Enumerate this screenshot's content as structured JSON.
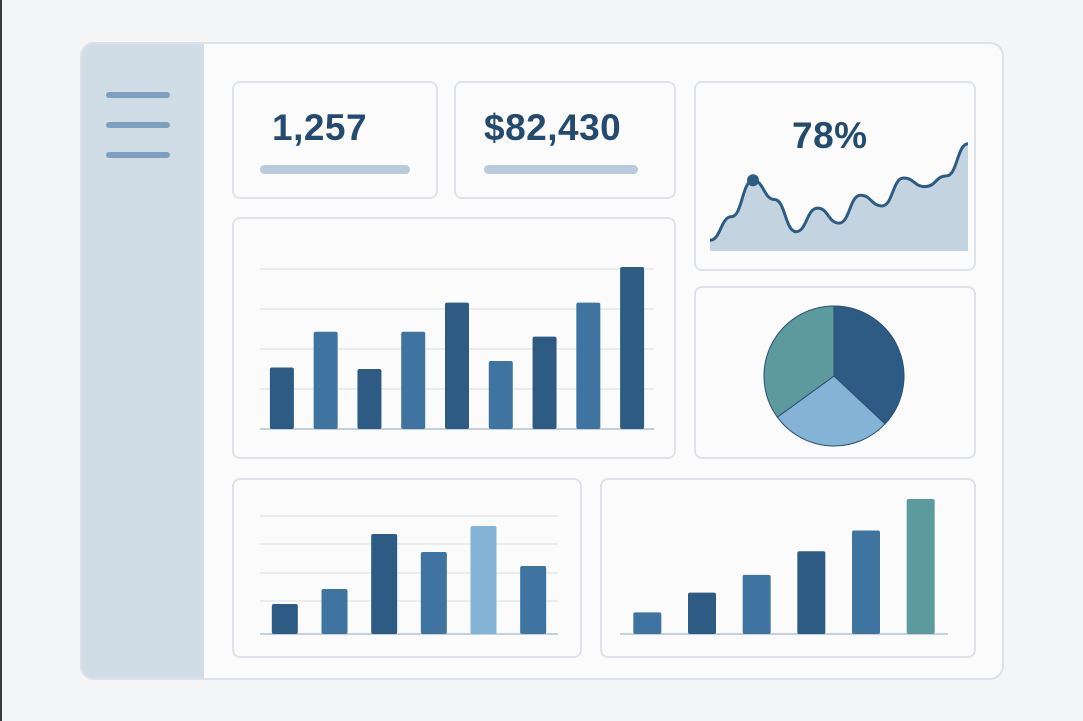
{
  "kpis": {
    "users": {
      "value": "1,257"
    },
    "revenue": {
      "value": "$82,430"
    },
    "rate": {
      "value": "78%"
    }
  },
  "colors": {
    "dark_blue": "#2d5b84",
    "mid_blue": "#3f73a0",
    "light_blue": "#84b3d6",
    "teal": "#5c9a9e",
    "area_fill": "#c3d3e0",
    "sidebar": "#d0dde6"
  },
  "chart_data": [
    {
      "id": "sparkline",
      "type": "area",
      "values": [
        10,
        32,
        66,
        48,
        18,
        40,
        26,
        52,
        42,
        68,
        60,
        70,
        100
      ],
      "highlight_index": 2,
      "ylim": [
        0,
        110
      ],
      "grid": false
    },
    {
      "id": "main-bars",
      "type": "bar",
      "values": [
        38,
        60,
        37,
        60,
        78,
        42,
        57,
        78,
        100
      ],
      "ylim": [
        0,
        100
      ],
      "grid": true
    },
    {
      "id": "pie",
      "type": "pie",
      "values": [
        37,
        28,
        35
      ],
      "colors": [
        "#2d5b84",
        "#84b3d6",
        "#5c9a9e"
      ]
    },
    {
      "id": "bottom-left-bars",
      "type": "bar",
      "values": [
        30,
        45,
        100,
        82,
        108,
        68
      ],
      "highlight_index": 4,
      "ylim": [
        0,
        110
      ],
      "grid": true
    },
    {
      "id": "bottom-right-bars",
      "type": "bar",
      "values": [
        22,
        42,
        60,
        84,
        105,
        137
      ],
      "highlight_index": 5,
      "ylim": [
        0,
        140
      ],
      "grid": false
    }
  ]
}
